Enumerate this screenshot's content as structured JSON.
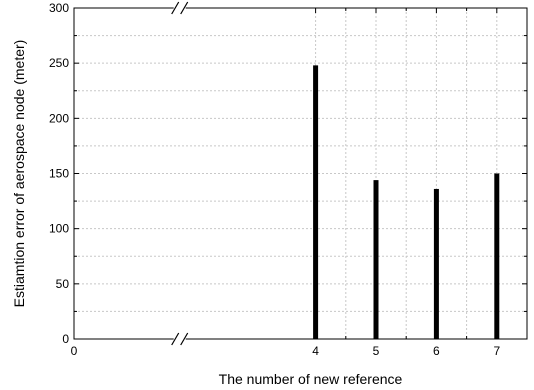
{
  "chart_data": {
    "type": "bar",
    "xlabel": "The number of new reference",
    "ylabel": "Estiamtion error of aerospace node (meter)",
    "x_ticks": [
      "0",
      "4",
      "5",
      "6",
      "7"
    ],
    "y_ticks": [
      "0",
      "50",
      "100",
      "150",
      "200",
      "250",
      "300"
    ],
    "ylim": [
      0,
      300
    ],
    "x_range": [
      0,
      7.5
    ],
    "axis_break_between": [
      0,
      4
    ],
    "grid": true,
    "categories": [
      "4",
      "5",
      "6",
      "7"
    ],
    "values": [
      248,
      144,
      136,
      150
    ],
    "bar_color": "#000000",
    "grid_color": "#c8c8c8"
  }
}
